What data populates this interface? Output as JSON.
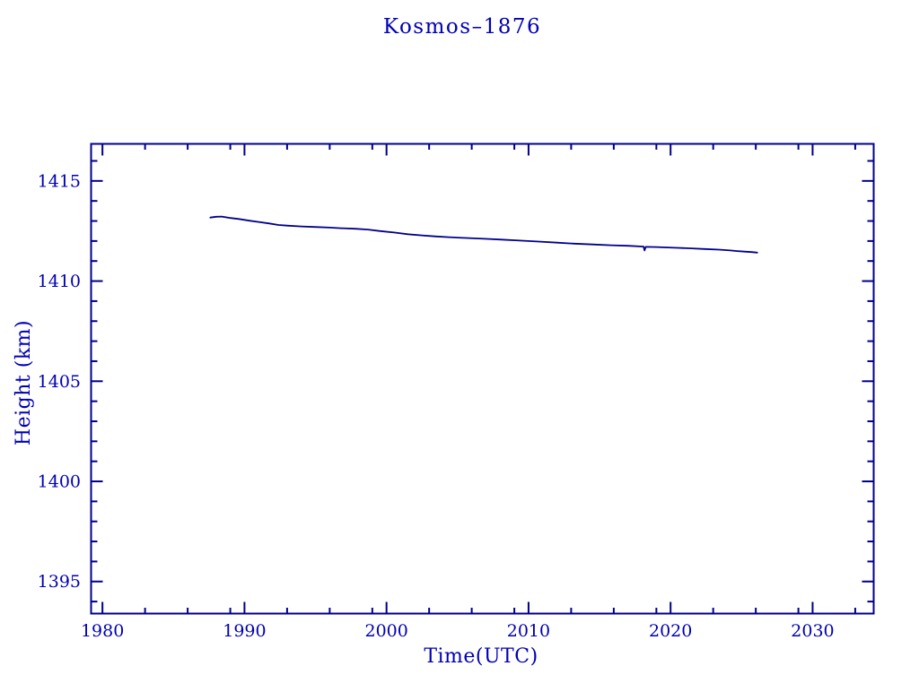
{
  "page": {
    "background": "#ffffff"
  },
  "style": {
    "frame_color": "#00008B",
    "line_color": "#00008B",
    "text_color": "#0000B4"
  },
  "chart_data": {
    "type": "line",
    "title": "Kosmos–1876",
    "xlabel": "Time(UTC)",
    "ylabel": "Height (km)",
    "xlim": [
      1979.2,
      2034.3
    ],
    "ylim": [
      1393.4,
      1416.85
    ],
    "grid": false,
    "legend": null,
    "x_ticks": {
      "major_values": [
        1980,
        1990,
        2000,
        2010,
        2020,
        2030
      ],
      "major_labels": [
        "1980",
        "1990",
        "2000",
        "2010",
        "2020",
        "2030"
      ],
      "minor_values": [
        1983,
        1986,
        1989,
        1993,
        1996,
        1999,
        2003,
        2006,
        2009,
        2013,
        2016,
        2019,
        2023,
        2026,
        2029,
        2033
      ]
    },
    "y_ticks": {
      "major_values": [
        1395,
        1400,
        1405,
        1410,
        1415
      ],
      "major_labels": [
        "1395",
        "1400",
        "1405",
        "1410",
        "1415"
      ],
      "minor_values": [
        1394,
        1396,
        1397,
        1398,
        1399,
        1401,
        1402,
        1403,
        1404,
        1406,
        1407,
        1408,
        1409,
        1411,
        1412,
        1413,
        1414,
        1416
      ]
    },
    "series": [
      {
        "name": "height_km",
        "color": "#00008B",
        "points": [
          [
            1987.6,
            1413.17
          ],
          [
            1988.0,
            1413.21
          ],
          [
            1988.4,
            1413.22
          ],
          [
            1989.0,
            1413.15
          ],
          [
            1989.6,
            1413.1
          ],
          [
            1990.4,
            1413.01
          ],
          [
            1991.0,
            1412.95
          ],
          [
            1991.7,
            1412.88
          ],
          [
            1992.4,
            1412.8
          ],
          [
            1993.0,
            1412.77
          ],
          [
            1994.0,
            1412.73
          ],
          [
            1994.9,
            1412.7
          ],
          [
            1996.0,
            1412.67
          ],
          [
            1996.8,
            1412.64
          ],
          [
            1997.8,
            1412.61
          ],
          [
            1998.7,
            1412.57
          ],
          [
            1999.5,
            1412.5
          ],
          [
            2000.6,
            1412.42
          ],
          [
            2001.5,
            1412.34
          ],
          [
            2002.5,
            1412.28
          ],
          [
            2003.4,
            1412.23
          ],
          [
            2004.4,
            1412.19
          ],
          [
            2005.6,
            1412.15
          ],
          [
            2006.9,
            1412.11
          ],
          [
            2008.1,
            1412.07
          ],
          [
            2009.4,
            1412.02
          ],
          [
            2010.7,
            1411.97
          ],
          [
            2012.0,
            1411.92
          ],
          [
            2013.2,
            1411.87
          ],
          [
            2014.5,
            1411.83
          ],
          [
            2015.8,
            1411.79
          ],
          [
            2017.0,
            1411.76
          ],
          [
            2018.1,
            1411.72
          ],
          [
            2018.17,
            1411.53
          ],
          [
            2018.25,
            1411.71
          ],
          [
            2019.0,
            1411.7
          ],
          [
            2019.6,
            1411.68
          ],
          [
            2020.5,
            1411.66
          ],
          [
            2021.5,
            1411.63
          ],
          [
            2022.4,
            1411.6
          ],
          [
            2023.4,
            1411.57
          ],
          [
            2024.2,
            1411.53
          ],
          [
            2024.6,
            1411.5
          ],
          [
            2025.2,
            1411.47
          ],
          [
            2025.7,
            1411.45
          ],
          [
            2026.1,
            1411.42
          ]
        ]
      }
    ]
  }
}
